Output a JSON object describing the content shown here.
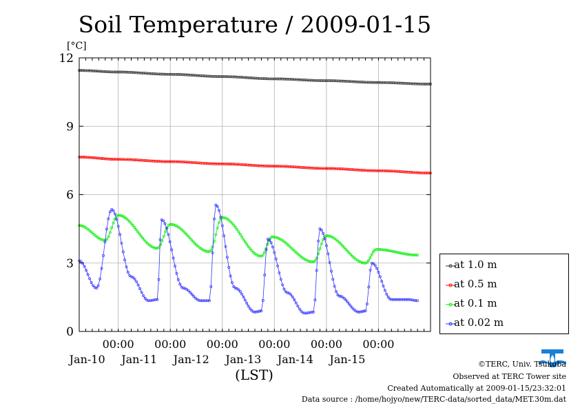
{
  "chart_data": {
    "type": "line",
    "title": "Soil Temperature / 2009-01-15",
    "ylabel": "[°C]",
    "xlabel": "(LST)",
    "ylim": [
      0,
      12
    ],
    "yticks": [
      0,
      3,
      6,
      9,
      12
    ],
    "xlim": [
      "2009-01-09T06:00",
      "2009-01-15T24:00"
    ],
    "xticks": [
      {
        "label": "00:00",
        "sublabel": "Jan-10",
        "time": "2009-01-10T00:00"
      },
      {
        "label": "00:00",
        "sublabel": "Jan-11",
        "time": "2009-01-11T00:00"
      },
      {
        "label": "00:00",
        "sublabel": "Jan-12",
        "time": "2009-01-12T00:00"
      },
      {
        "label": "00:00",
        "sublabel": "Jan-13",
        "time": "2009-01-13T00:00"
      },
      {
        "label": "00:00",
        "sublabel": "Jan-14",
        "time": "2009-01-14T00:00"
      },
      {
        "label": "00:00",
        "sublabel": "Jan-15",
        "time": "2009-01-15T00:00"
      }
    ],
    "grid": true,
    "legend_position": "right",
    "series": [
      {
        "name": "at 1.0 m",
        "color": "#333333",
        "marker": "circle",
        "x": [
          "2009-01-09T06:00",
          "2009-01-10T00:00",
          "2009-01-11T00:00",
          "2009-01-12T00:00",
          "2009-01-13T00:00",
          "2009-01-14T00:00",
          "2009-01-15T00:00",
          "2009-01-15T24:00"
        ],
        "y": [
          11.45,
          11.38,
          11.28,
          11.18,
          11.08,
          11.0,
          10.92,
          10.85
        ]
      },
      {
        "name": "at 0.5 m",
        "color": "#ff0000",
        "marker": "circle",
        "x": [
          "2009-01-09T06:00",
          "2009-01-10T00:00",
          "2009-01-11T00:00",
          "2009-01-12T00:00",
          "2009-01-13T00:00",
          "2009-01-14T00:00",
          "2009-01-15T00:00",
          "2009-01-15T24:00"
        ],
        "y": [
          7.65,
          7.55,
          7.45,
          7.35,
          7.25,
          7.15,
          7.05,
          6.95
        ]
      },
      {
        "name": "at 0.1 m",
        "color": "#00ee00",
        "marker": "circle",
        "x": [
          "2009-01-09T06:00",
          "2009-01-09T18:00",
          "2009-01-10T00:00",
          "2009-01-10T18:00",
          "2009-01-11T00:00",
          "2009-01-11T18:00",
          "2009-01-12T00:00",
          "2009-01-12T18:00",
          "2009-01-12T23:00",
          "2009-01-13T18:00",
          "2009-01-14T00:00",
          "2009-01-14T18:00",
          "2009-01-14T23:00",
          "2009-01-15T18:00"
        ],
        "y": [
          4.65,
          4.0,
          5.1,
          3.65,
          4.7,
          3.5,
          5.0,
          3.3,
          4.15,
          3.05,
          4.2,
          3.0,
          3.6,
          3.35
        ]
      },
      {
        "name": "at 0.02 m",
        "color": "#3030ff",
        "marker": "circle",
        "x": [
          "2009-01-09T06:00",
          "2009-01-09T14:00",
          "2009-01-09T21:00",
          "2009-01-10T06:00",
          "2009-01-10T14:00",
          "2009-01-10T18:00",
          "2009-01-10T20:00",
          "2009-01-11T06:00",
          "2009-01-11T14:00",
          "2009-01-11T18:00",
          "2009-01-11T21:00",
          "2009-01-12T06:00",
          "2009-01-12T15:00",
          "2009-01-12T18:00",
          "2009-01-12T21:00",
          "2009-01-13T06:00",
          "2009-01-13T14:00",
          "2009-01-13T18:00",
          "2009-01-13T21:00",
          "2009-01-14T06:00",
          "2009-01-14T15:00",
          "2009-01-14T18:00",
          "2009-01-14T21:00",
          "2009-01-15T06:00",
          "2009-01-15T14:00",
          "2009-01-15T18:00"
        ],
        "y": [
          3.1,
          1.9,
          5.35,
          2.4,
          1.35,
          1.4,
          4.9,
          1.9,
          1.35,
          1.35,
          5.55,
          1.9,
          0.85,
          0.9,
          4.05,
          1.7,
          0.8,
          0.85,
          4.5,
          1.55,
          0.85,
          0.9,
          3.0,
          1.4,
          1.4,
          1.35
        ]
      }
    ]
  },
  "footer": {
    "copyright": "©TERC, Univ. Tsukuba",
    "observed": "Observed at TERC Tower site",
    "created": "Created Automatically at 2009-01-15/23:32:01",
    "source": "Data source : /home/hojyo/new/TERC-data/sorted_data/MET.30m.dat"
  },
  "logo": {
    "text": "TERC",
    "color": "#1a7fd6"
  }
}
